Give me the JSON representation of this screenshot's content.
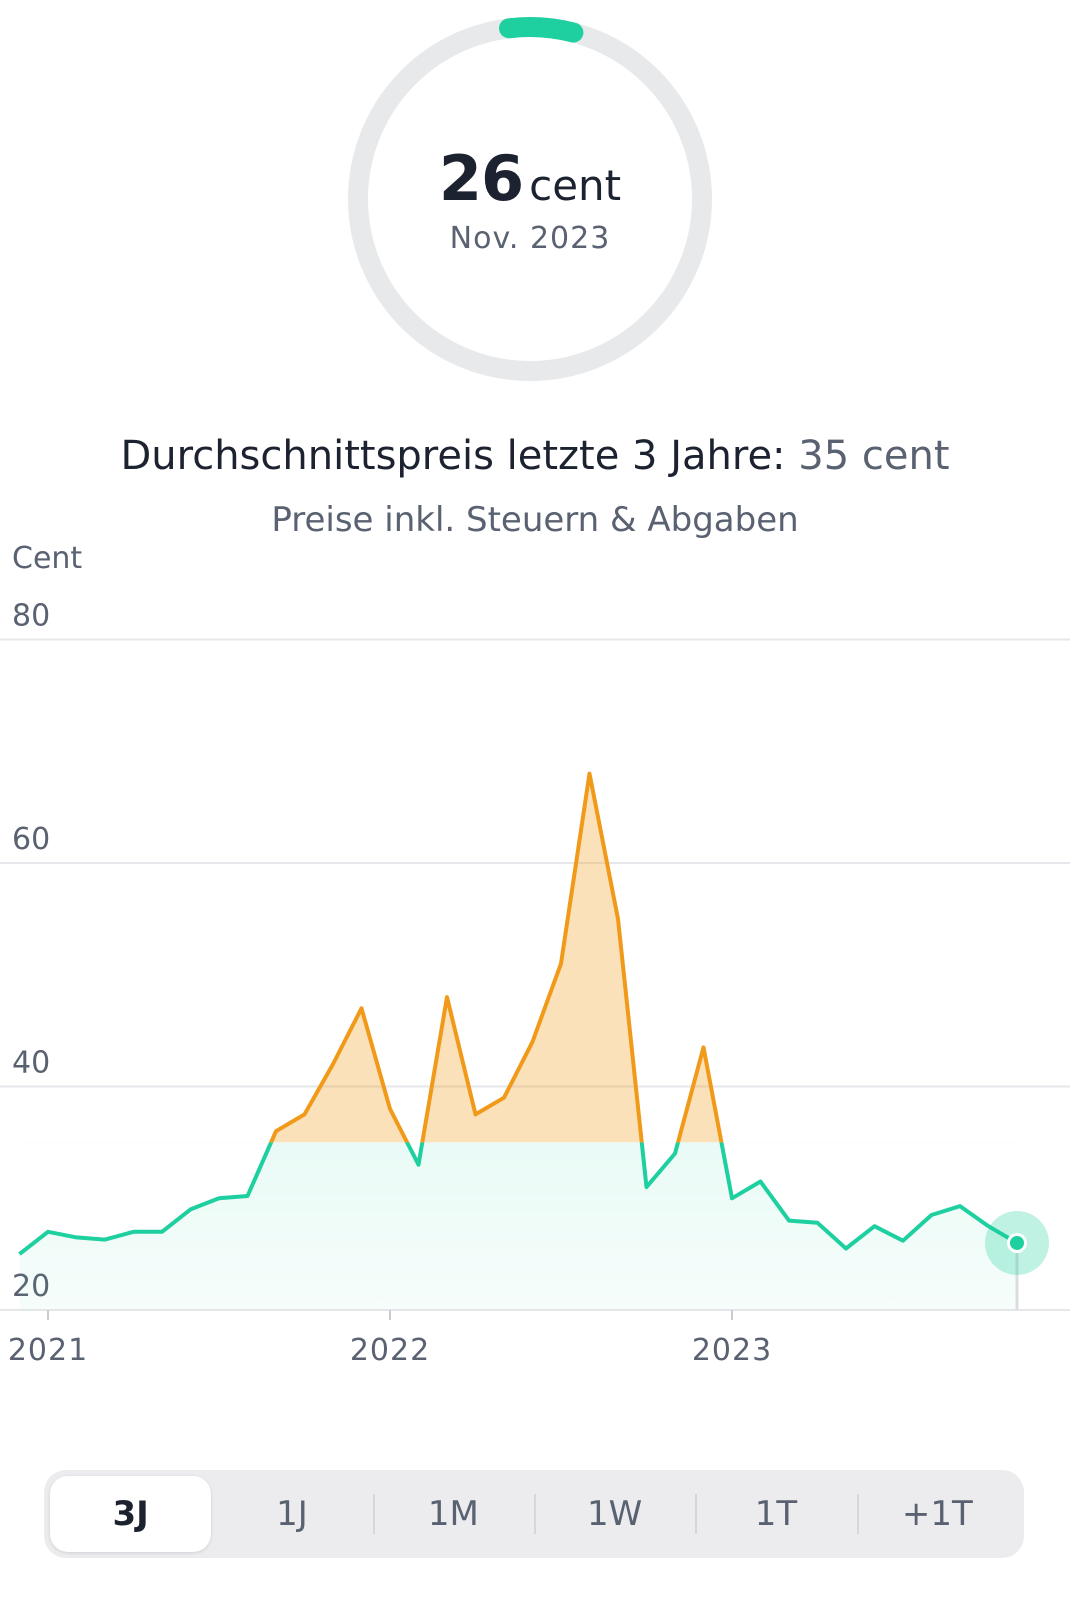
{
  "gauge": {
    "value": "26",
    "unit": "cent",
    "date": "Nov. 2023",
    "fill_fraction": 0.06,
    "track_color": "#e8e9eb",
    "fill_color": "#1ecf9f"
  },
  "summary": {
    "average_label": "Durchschnittspreis letzte 3 Jahre:",
    "average_value": "35 cent",
    "subtitle": "Preise inkl. Steuern & Abgaben"
  },
  "chart_data": {
    "type": "area",
    "ylabel": "Cent",
    "ylim": [
      15,
      80
    ],
    "yticks": [
      "20",
      "40",
      "60",
      "80"
    ],
    "xticks": [
      {
        "label": "2021",
        "x": "2021-01"
      },
      {
        "label": "2022",
        "x": "2022-01"
      },
      {
        "label": "2023",
        "x": "2023-01"
      }
    ],
    "threshold": 35,
    "below_color": "#1ecf9f",
    "above_color": "#f19a1a",
    "grid": true,
    "series": [
      {
        "x": [
          "2020-12",
          "2021-01",
          "2021-02",
          "2021-03",
          "2021-04",
          "2021-05",
          "2021-06",
          "2021-07",
          "2021-08",
          "2021-09",
          "2021-10",
          "2021-11",
          "2021-12",
          "2022-01",
          "2022-02",
          "2022-03",
          "2022-04",
          "2022-05",
          "2022-06",
          "2022-07",
          "2022-08",
          "2022-09",
          "2022-10",
          "2022-11",
          "2022-12",
          "2023-01",
          "2023-02",
          "2023-03",
          "2023-04",
          "2023-05",
          "2023-06",
          "2023-07",
          "2023-08",
          "2023-09",
          "2023-10",
          "2023-11"
        ],
        "values": [
          25,
          27,
          26.5,
          26.3,
          27,
          27,
          29,
          30,
          30.2,
          36,
          37.5,
          42,
          47,
          38,
          33,
          48,
          37.5,
          39,
          44,
          51,
          68,
          55,
          31,
          34,
          43.5,
          30,
          31.5,
          28,
          27.8,
          25.5,
          27.5,
          26.2,
          28.5,
          29.3,
          27.5,
          26
        ]
      }
    ]
  },
  "current_point": {
    "x": "2023-11",
    "value": 26
  },
  "range_tabs": {
    "items": [
      "3J",
      "1J",
      "1M",
      "1W",
      "1T",
      "+1T"
    ],
    "active": 0
  }
}
